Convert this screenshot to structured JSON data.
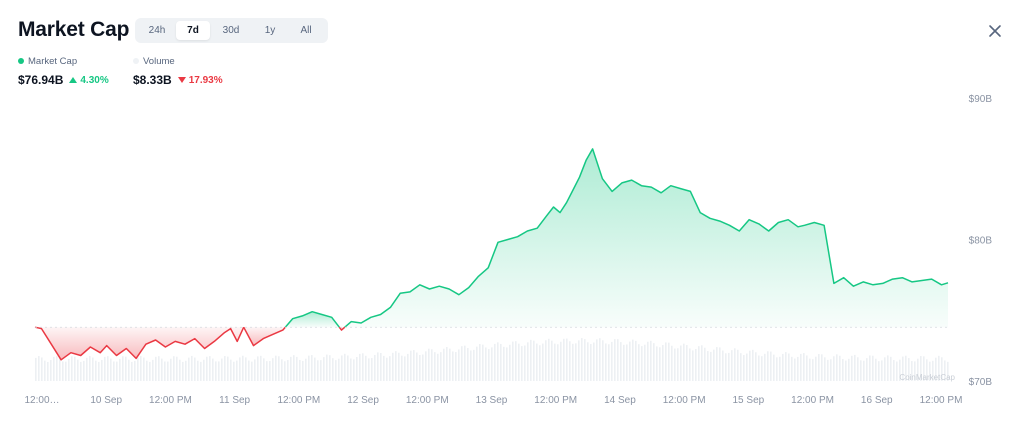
{
  "header": {
    "title": "Market Cap",
    "tabs": [
      {
        "label": "24h",
        "active": false
      },
      {
        "label": "7d",
        "active": true
      },
      {
        "label": "30d",
        "active": false
      },
      {
        "label": "1y",
        "active": false
      },
      {
        "label": "All",
        "active": false
      }
    ],
    "close_icon": "close-icon"
  },
  "stats": {
    "market_cap": {
      "label": "Market Cap",
      "value": "$76.94B",
      "change": "4.30%",
      "direction": "up"
    },
    "volume": {
      "label": "Volume",
      "value": "$8.33B",
      "change": "17.93%",
      "direction": "down"
    }
  },
  "watermark": "CoinMarketCap",
  "colors": {
    "up": "#16c784",
    "down": "#ea3943",
    "text": "#0d1421",
    "muted": "#8a93a3",
    "volume_bar": "#e6e9ee"
  },
  "chart_data": {
    "type": "area",
    "title": "Market Cap",
    "xlabel": "",
    "ylabel": "",
    "x_ticks": [
      "12:00…",
      "10 Sep",
      "12:00 PM",
      "11 Sep",
      "12:00 PM",
      "12 Sep",
      "12:00 PM",
      "13 Sep",
      "12:00 PM",
      "14 Sep",
      "12:00 PM",
      "15 Sep",
      "12:00 PM",
      "16 Sep",
      "12:00 PM"
    ],
    "y_ticks": [
      "$70B",
      "$80B",
      "$90B"
    ],
    "y_tick_values": [
      70,
      80,
      90
    ],
    "ylim": [
      70,
      90
    ],
    "baseline": 73.8,
    "grid": false,
    "x_range": [
      0,
      14
    ],
    "series": [
      {
        "unit": "$B",
        "x": [
          0,
          0.1,
          0.25,
          0.4,
          0.55,
          0.7,
          0.85,
          1.0,
          1.1,
          1.25,
          1.4,
          1.55,
          1.7,
          1.85,
          2.0,
          2.15,
          2.3,
          2.45,
          2.6,
          2.75,
          2.9,
          3.0,
          3.1,
          3.2,
          3.35,
          3.5,
          3.65,
          3.8,
          3.95,
          4.1,
          4.25,
          4.4,
          4.55,
          4.7,
          4.85,
          5.0,
          5.15,
          5.3,
          5.45,
          5.6,
          5.75,
          5.9,
          6.05,
          6.2,
          6.35,
          6.5,
          6.65,
          6.8,
          6.95,
          7.1,
          7.25,
          7.4,
          7.55,
          7.7,
          7.85,
          7.95,
          8.05,
          8.15,
          8.25,
          8.35,
          8.45,
          8.55,
          8.7,
          8.85,
          9.0,
          9.15,
          9.3,
          9.45,
          9.6,
          9.75,
          9.9,
          10.05,
          10.2,
          10.35,
          10.5,
          10.65,
          10.8,
          10.95,
          11.1,
          11.25,
          11.4,
          11.55,
          11.7,
          11.8,
          11.95,
          12.1,
          12.25,
          12.4,
          12.55,
          12.7,
          12.85,
          13.0,
          13.15,
          13.3,
          13.45,
          13.6,
          13.75,
          13.9,
          14.0
        ],
        "values": [
          73.8,
          73.7,
          72.6,
          71.5,
          72.0,
          71.8,
          72.4,
          72.0,
          72.5,
          71.8,
          72.3,
          71.6,
          72.6,
          72.9,
          72.4,
          72.8,
          72.6,
          73.0,
          72.3,
          72.8,
          73.4,
          73.7,
          72.8,
          73.8,
          72.5,
          73.0,
          73.3,
          73.6,
          74.4,
          74.6,
          74.9,
          74.7,
          74.5,
          73.6,
          74.2,
          74.1,
          74.5,
          74.7,
          75.2,
          76.2,
          76.3,
          76.8,
          76.5,
          76.7,
          76.5,
          76.1,
          76.6,
          77.4,
          78.0,
          79.8,
          80.0,
          80.2,
          80.6,
          80.8,
          81.7,
          82.3,
          81.9,
          82.6,
          83.5,
          84.4,
          85.6,
          86.4,
          84.3,
          83.4,
          84.0,
          84.2,
          83.8,
          83.7,
          83.3,
          83.8,
          83.6,
          83.4,
          81.9,
          81.5,
          81.3,
          81.0,
          80.6,
          81.4,
          81.1,
          80.6,
          81.2,
          81.4,
          80.9,
          81.0,
          81.2,
          81.0,
          76.9,
          77.3,
          76.7,
          77.0,
          76.8,
          76.9,
          77.2,
          77.3,
          77.0,
          77.1,
          77.2,
          76.8,
          76.94
        ]
      }
    ]
  }
}
